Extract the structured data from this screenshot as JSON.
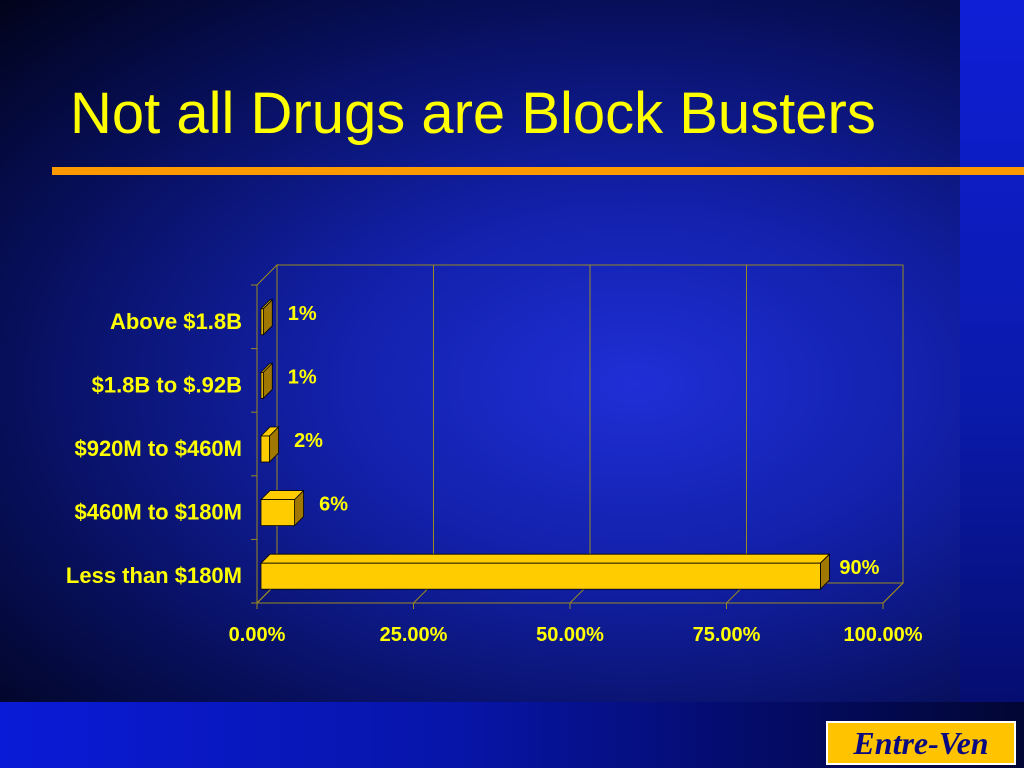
{
  "slide": {
    "title": "Not all Drugs are Block Busters",
    "logo_text": "Entre-Ven"
  },
  "colors": {
    "title": "#ffff00",
    "rule": "#ff9900",
    "bar_face": "#ffcc00",
    "bar_side": "#a07800",
    "axis_text": "#ffff00",
    "gridline": "#9a8a20",
    "logo_bg": "#ffc300",
    "logo_text": "#0a0a80"
  },
  "chart_data": {
    "type": "bar",
    "orientation": "horizontal",
    "three_d": true,
    "categories": [
      "Above $1.8B",
      "$1.8B to $.92B",
      "$920M to $460M",
      "$460M to $180M",
      "Less than $180M"
    ],
    "values": [
      1,
      1,
      2,
      6,
      90
    ],
    "data_labels": [
      "1%",
      "1%",
      "2%",
      "6%",
      "90%"
    ],
    "x_ticks": [
      0,
      25,
      50,
      75,
      100
    ],
    "x_tick_labels": [
      "0.00%",
      "25.00%",
      "50.00%",
      "75.00%",
      "100.00%"
    ],
    "xlim": [
      0,
      100
    ],
    "grid": true,
    "legend": "none"
  }
}
